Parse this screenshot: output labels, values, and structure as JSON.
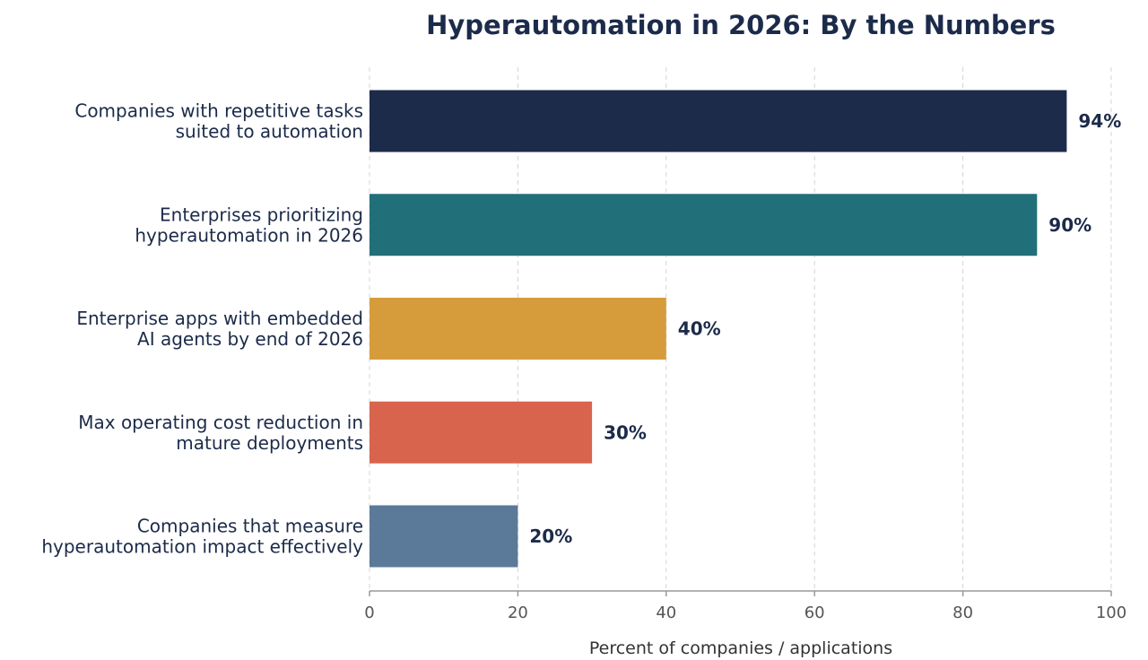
{
  "chart_data": {
    "type": "bar",
    "orientation": "horizontal",
    "title": "Hyperautomation in 2026: By the Numbers",
    "xlabel": "Percent of companies / applications",
    "ylabel": "",
    "xlim": [
      0,
      100
    ],
    "xticks": [
      0,
      20,
      40,
      60,
      80,
      100
    ],
    "grid": true,
    "categories": [
      [
        "Companies with repetitive tasks",
        "suited to automation"
      ],
      [
        "Enterprises prioritizing",
        "hyperautomation in 2026"
      ],
      [
        "Enterprise apps with embedded",
        "AI agents by end of 2026"
      ],
      [
        "Max operating cost reduction in",
        "mature deployments"
      ],
      [
        "Companies that measure",
        "hyperautomation impact effectively"
      ]
    ],
    "values": [
      94,
      90,
      40,
      30,
      20
    ],
    "value_labels": [
      "94%",
      "90%",
      "40%",
      "30%",
      "20%"
    ],
    "colors": [
      "#1c2b4a",
      "#216f78",
      "#d69c3c",
      "#d9644d",
      "#5b7a99"
    ]
  }
}
